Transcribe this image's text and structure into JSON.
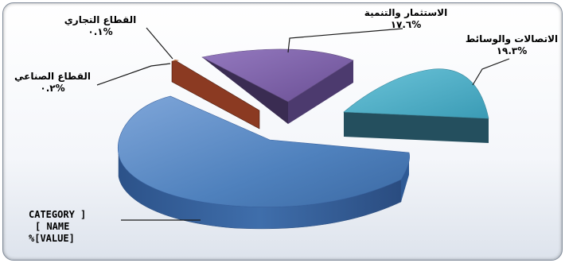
{
  "chart_data": {
    "type": "pie",
    "style": "3d-exploded",
    "slices": [
      {
        "label": "القطاع التجاري",
        "value_text": "%٠.١",
        "value": 0.1,
        "color": "#7a3b1f"
      },
      {
        "label": "الاستثمار والتنمية",
        "value_text": "%١٧.٦",
        "value": 17.6,
        "color": "#7f62a8"
      },
      {
        "label": "الاتصالات والوسائط",
        "value_text": "%١٩.٣",
        "value": 19.3,
        "color": "#4bacc6"
      },
      {
        "label": "القطاع الصناعي",
        "value_text": "%٠.٢",
        "value": 0.2,
        "color": "#8b3a22"
      },
      {
        "label_lines": [
          "CATEGORY ]",
          "[ NAME",
          "%[VALUE]"
        ],
        "color": "#4f81bd"
      }
    ]
  }
}
